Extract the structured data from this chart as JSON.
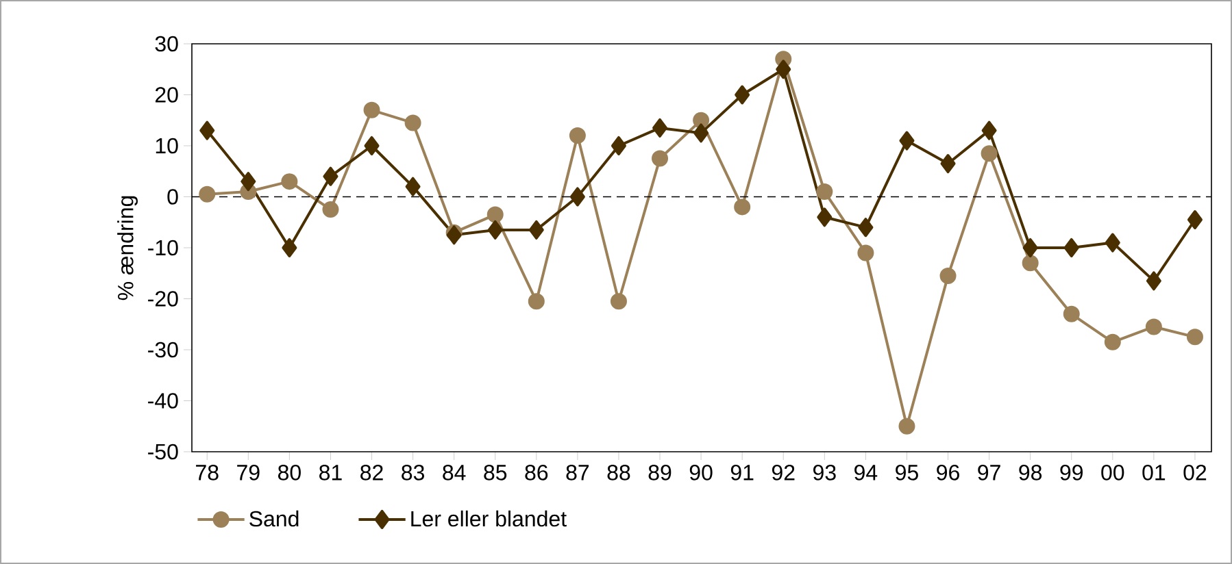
{
  "chart_data": {
    "type": "line",
    "ylabel": "% ændring",
    "categories": [
      "78",
      "79",
      "80",
      "81",
      "82",
      "83",
      "84",
      "85",
      "86",
      "87",
      "88",
      "89",
      "90",
      "91",
      "92",
      "93",
      "94",
      "95",
      "96",
      "97",
      "98",
      "99",
      "00",
      "01",
      "02"
    ],
    "series": [
      {
        "name": "Sand",
        "color": "#9c8058",
        "marker": "circle",
        "values": [
          0.5,
          1,
          3,
          -2.5,
          17,
          14.5,
          -7,
          -3.5,
          -20.5,
          12,
          -20.5,
          7.5,
          15,
          -2,
          27,
          1,
          -11,
          -45,
          -15.5,
          8.5,
          -13,
          -23,
          -28.5,
          -25.5,
          -27.5
        ]
      },
      {
        "name": "Ler eller blandet",
        "color": "#4a3000",
        "marker": "diamond",
        "values": [
          13,
          3,
          -10,
          4,
          10,
          2,
          -7.5,
          -6.5,
          -6.5,
          0,
          10,
          13.5,
          12.5,
          20,
          25,
          -4,
          -6,
          11,
          6.5,
          13,
          -10,
          -10,
          -9,
          -16.5,
          -4.5
        ]
      }
    ],
    "ylim": [
      -50,
      30
    ],
    "yticks": [
      -50,
      -40,
      -30,
      -20,
      -10,
      0,
      10,
      20,
      30
    ],
    "grid": false,
    "legend": "bottom",
    "line_style": "solid",
    "ref_lines": [
      {
        "axis": "y",
        "value": 0,
        "color": "#000000",
        "line_style": "dashed"
      }
    ]
  }
}
